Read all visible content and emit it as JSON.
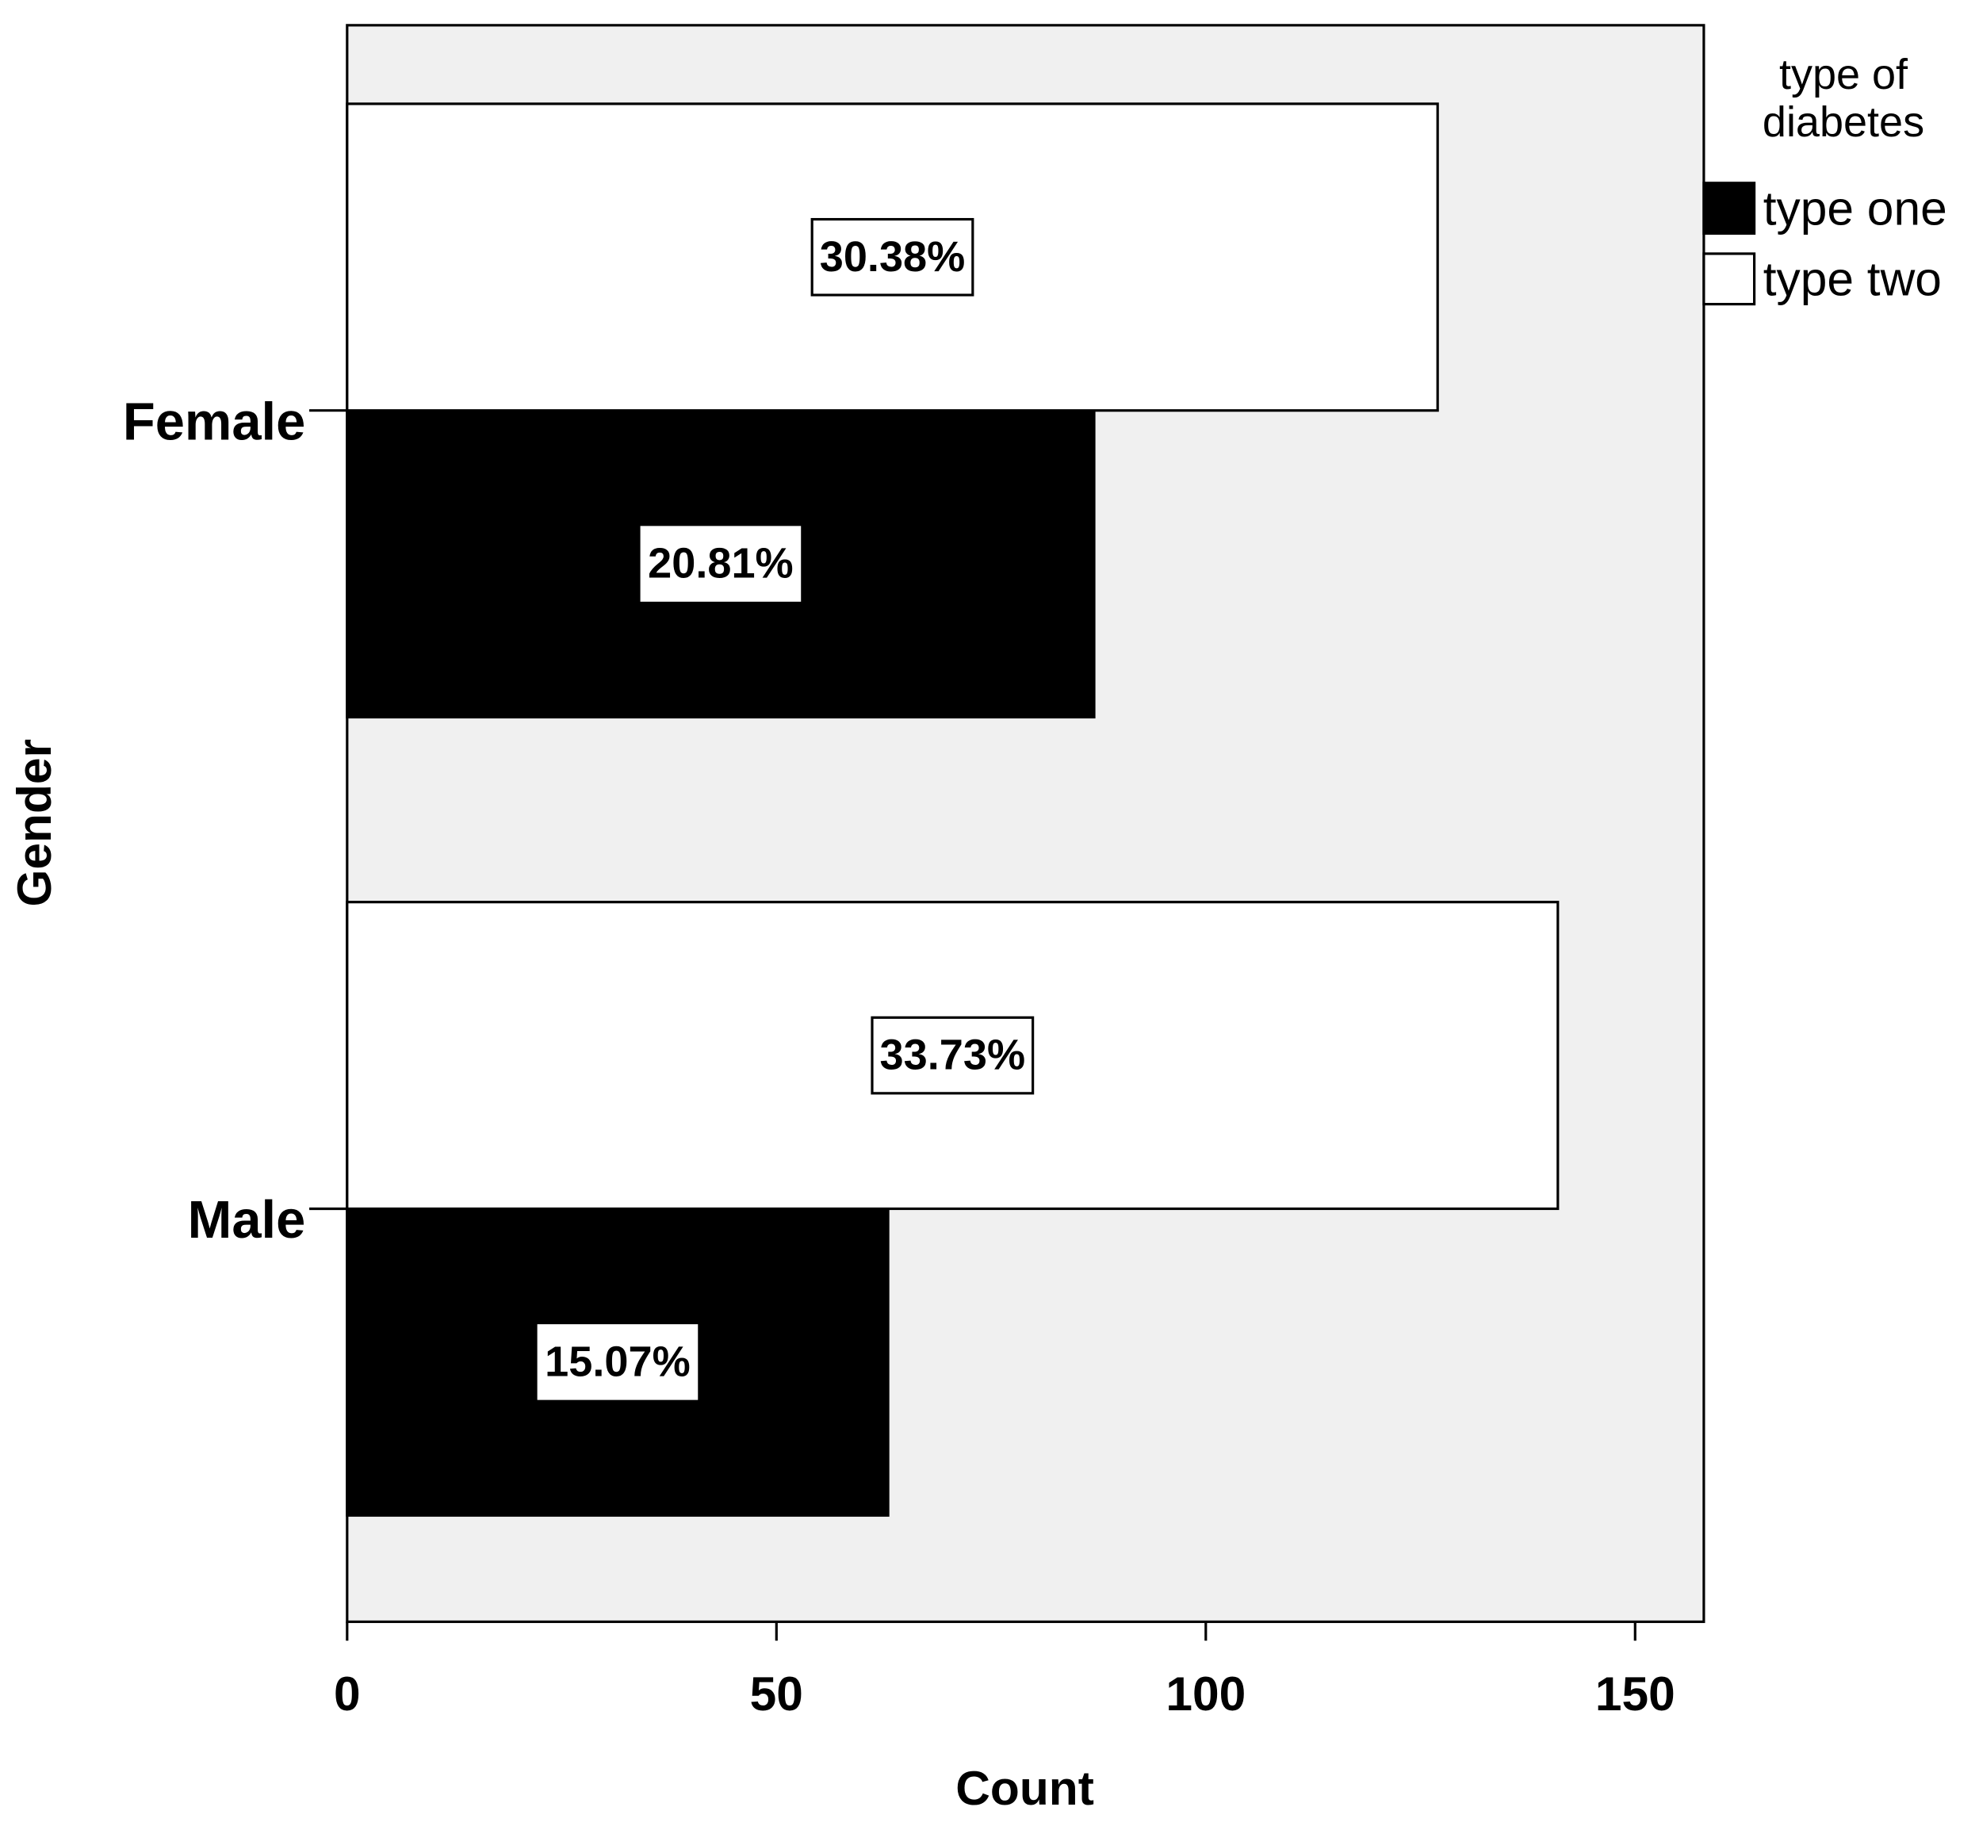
{
  "chart_data": {
    "type": "bar",
    "orientation": "horizontal",
    "x_label": "Count",
    "y_label": "Gender",
    "categories": [
      "Female",
      "Male"
    ],
    "legend_title": "type of diabetes",
    "legend_position": "right",
    "series": [
      {
        "name": "type one",
        "color": "#000000",
        "values": [
          87,
          63
        ],
        "data_labels": [
          "20.81%",
          "15.07%"
        ]
      },
      {
        "name": "type two",
        "color": "#ffffff",
        "values": [
          127,
          141
        ],
        "data_labels": [
          "30.38%",
          "33.73%"
        ]
      }
    ],
    "xlim": [
      0,
      158
    ],
    "xticks": [
      0,
      50,
      100,
      150
    ],
    "background": "#f0f0f0"
  }
}
